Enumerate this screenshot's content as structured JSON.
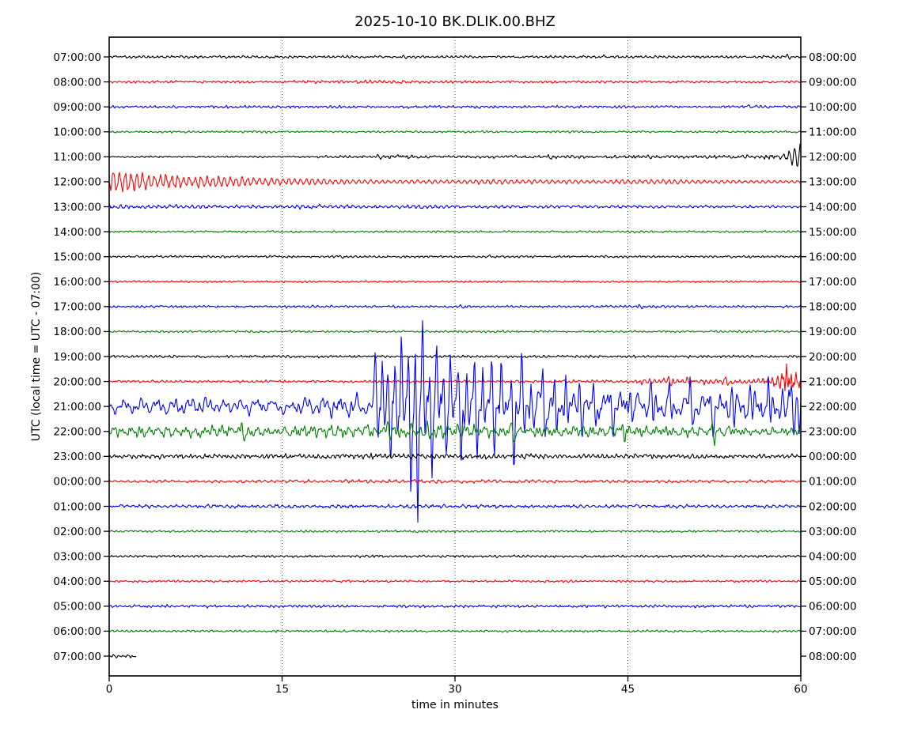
{
  "title": "2025-10-10 BK.DLIK.00.BHZ",
  "xlabel": "time in minutes",
  "ylabel": "UTC (local time = UTC - 07:00)",
  "x_ticks": [
    0,
    15,
    30,
    45,
    60
  ],
  "grid_minutes": [
    15,
    30,
    45
  ],
  "colors": {
    "black": "#000000",
    "red": "#ff0000",
    "blue": "#0000ff",
    "green": "#008000"
  },
  "chart_data": {
    "type": "line",
    "subtype": "helicorder-dayplot",
    "station": "BK.DLIK.00.BHZ",
    "date": "2025-10-10",
    "minutes_per_row": 60,
    "x_range_minutes": [
      0,
      60
    ],
    "grid": "vertical-dotted",
    "rows": [
      {
        "left": "07:00:00",
        "right": "08:00:00",
        "color": "black",
        "seg": [
          [
            0,
            60,
            1.5,
            1.5
          ]
        ],
        "spikes": [
          [
            25.5,
            2.5,
            2.5
          ],
          [
            43,
            2.5,
            2
          ],
          [
            58.8,
            2.5,
            2.5
          ]
        ]
      },
      {
        "left": "08:00:00",
        "right": "09:00:00",
        "color": "red",
        "seg": [
          [
            0,
            16,
            1.4,
            1.4
          ],
          [
            16,
            23,
            1.9,
            1.9
          ],
          [
            23,
            32,
            1.7,
            1.5
          ],
          [
            32,
            60,
            1.4,
            1.4
          ]
        ]
      },
      {
        "left": "09:00:00",
        "right": "10:00:00",
        "color": "blue",
        "seg": [
          [
            0,
            60,
            1.5,
            1.5
          ]
        ],
        "spikes": [
          [
            55.5,
            3,
            2
          ]
        ]
      },
      {
        "left": "10:00:00",
        "right": "11:00:00",
        "color": "green",
        "seg": [
          [
            0,
            60,
            1.2,
            1.2
          ]
        ]
      },
      {
        "left": "11:00:00",
        "right": "12:00:00",
        "color": "black",
        "seg": [
          [
            0,
            18,
            1.0,
            1.0
          ],
          [
            18,
            24,
            1.4,
            1.6
          ],
          [
            24,
            27,
            2.6,
            2.0
          ],
          [
            27,
            38,
            1.7,
            1.7
          ],
          [
            38,
            42,
            3.0,
            2.2
          ],
          [
            42,
            45,
            1.8,
            1.8
          ],
          [
            45,
            48,
            3.0,
            2.2
          ],
          [
            48,
            56,
            2.0,
            2.0
          ],
          [
            56,
            57.5,
            2.2,
            3.0
          ],
          [
            57.5,
            60,
            3,
            4
          ]
        ],
        "ring": {
          "start": 57.6,
          "end": 60,
          "amp": 12,
          "period": 7
        },
        "spikes": [
          [
            23.3,
            3,
            3
          ]
        ]
      },
      {
        "left": "12:00:00",
        "right": "13:00:00",
        "color": "red",
        "seg": [
          [
            0,
            1.2,
            13,
            13
          ],
          [
            1.2,
            4,
            12,
            9
          ],
          [
            4,
            8,
            9,
            7
          ],
          [
            8,
            12,
            7,
            5.5
          ],
          [
            12,
            17,
            5.5,
            4
          ],
          [
            17,
            22,
            4,
            2.8
          ],
          [
            22,
            27,
            2.8,
            2.2
          ],
          [
            27,
            32,
            2.2,
            2.4
          ],
          [
            32,
            36,
            3.4,
            3.0
          ],
          [
            36,
            40,
            3.0,
            2.4
          ],
          [
            40,
            44,
            2.2,
            2.2
          ],
          [
            44,
            48,
            3.0,
            2.6
          ],
          [
            48,
            52,
            2.6,
            2.2
          ],
          [
            52,
            60,
            2.0,
            1.7
          ]
        ],
        "f1": 0.85,
        "sw1": 0.8,
        "sw2": 0.2,
        "nw": 0.35
      },
      {
        "left": "13:00:00",
        "right": "14:00:00",
        "color": "blue",
        "seg": [
          [
            0,
            3,
            2.6,
            2.2
          ],
          [
            3,
            9,
            2.2,
            1.9
          ],
          [
            9,
            16,
            1.9,
            1.7
          ],
          [
            16,
            20,
            2.3,
            2.0
          ],
          [
            20,
            26,
            1.9,
            1.7
          ],
          [
            26,
            29,
            2.2,
            1.9
          ],
          [
            29,
            40,
            1.7,
            1.5
          ],
          [
            40,
            60,
            1.5,
            1.4
          ]
        ],
        "f1": 0.9,
        "sw1": 0.6
      },
      {
        "left": "14:00:00",
        "right": "15:00:00",
        "color": "green",
        "seg": [
          [
            0,
            60,
            1.2,
            1.2
          ]
        ]
      },
      {
        "left": "15:00:00",
        "right": "16:00:00",
        "color": "black",
        "seg": [
          [
            0,
            60,
            1.3,
            1.3
          ]
        ],
        "spikes": [
          [
            20,
            2,
            2
          ],
          [
            33,
            2,
            1.5
          ]
        ]
      },
      {
        "left": "16:00:00",
        "right": "17:00:00",
        "color": "red",
        "seg": [
          [
            0,
            60,
            1.1,
            1.1
          ]
        ]
      },
      {
        "left": "17:00:00",
        "right": "18:00:00",
        "color": "blue",
        "seg": [
          [
            0,
            60,
            1.3,
            1.3
          ]
        ],
        "spikes": [
          [
            30.5,
            2.5,
            2
          ],
          [
            46,
            2,
            2
          ]
        ]
      },
      {
        "left": "18:00:00",
        "right": "19:00:00",
        "color": "green",
        "seg": [
          [
            0,
            60,
            1.2,
            1.2
          ]
        ]
      },
      {
        "left": "19:00:00",
        "right": "20:00:00",
        "color": "black",
        "seg": [
          [
            0,
            60,
            1.5,
            1.5
          ]
        ]
      },
      {
        "left": "20:00:00",
        "right": "21:00:00",
        "color": "red",
        "seg": [
          [
            0,
            38,
            1.5,
            1.5
          ],
          [
            38,
            46,
            1.8,
            2.2
          ],
          [
            46,
            49,
            3.5,
            3.5
          ],
          [
            49,
            56,
            3.5,
            3.2
          ],
          [
            56,
            58,
            3.5,
            7
          ],
          [
            58,
            58.8,
            10,
            20
          ],
          [
            58.8,
            59.4,
            20,
            14
          ],
          [
            59.4,
            60,
            12,
            9
          ]
        ],
        "spikes": [
          [
            48.5,
            5,
            4
          ],
          [
            50.2,
            4,
            5
          ],
          [
            53.5,
            4,
            4
          ],
          [
            59.0,
            6,
            8
          ]
        ]
      },
      {
        "left": "21:00:00",
        "right": "22:00:00",
        "color": "blue",
        "seg": [
          [
            0,
            8,
            8,
            9
          ],
          [
            8,
            16,
            9,
            8
          ],
          [
            16,
            21,
            8,
            11
          ],
          [
            21,
            22.5,
            11,
            18
          ],
          [
            22.5,
            30,
            20,
            20
          ],
          [
            30,
            36,
            19,
            16
          ],
          [
            36,
            44,
            15,
            13
          ],
          [
            44,
            52,
            13,
            12
          ],
          [
            52,
            56,
            12,
            14
          ],
          [
            56,
            58.5,
            15,
            20
          ],
          [
            58.5,
            60,
            22,
            26
          ]
        ],
        "f1": 0.3,
        "f2": 0.85,
        "sw1": 0.55,
        "sw2": 0.4,
        "nw": 0.7,
        "spikes": [
          [
            23.1,
            55,
            25
          ],
          [
            23.7,
            88,
            35
          ],
          [
            24.2,
            40,
            95
          ],
          [
            24.8,
            68,
            30
          ],
          [
            25.35,
            112,
            45
          ],
          [
            25.95,
            50,
            122
          ],
          [
            26.55,
            72,
            140
          ],
          [
            27.2,
            92,
            38
          ],
          [
            27.8,
            55,
            86
          ],
          [
            28.4,
            82,
            30
          ],
          [
            29.0,
            45,
            62
          ],
          [
            29.6,
            68,
            25
          ],
          [
            30.3,
            48,
            86
          ],
          [
            31.0,
            58,
            35
          ],
          [
            31.7,
            42,
            60
          ],
          [
            32.4,
            72,
            30
          ],
          [
            33.2,
            50,
            55
          ],
          [
            34.0,
            62,
            28
          ],
          [
            34.9,
            45,
            88
          ],
          [
            35.8,
            58,
            30
          ],
          [
            36.6,
            42,
            26
          ],
          [
            37.6,
            55,
            34
          ],
          [
            38.6,
            34,
            46
          ],
          [
            39.6,
            48,
            24
          ],
          [
            40.8,
            38,
            30
          ],
          [
            42.0,
            44,
            24
          ],
          [
            43.5,
            32,
            36
          ],
          [
            45.2,
            38,
            22
          ],
          [
            47.0,
            34,
            26
          ],
          [
            48.6,
            28,
            30
          ],
          [
            50.4,
            30,
            22
          ],
          [
            52.2,
            26,
            46
          ],
          [
            54.0,
            30,
            22
          ],
          [
            55.6,
            28,
            24
          ],
          [
            57.2,
            34,
            26
          ],
          [
            58.4,
            30,
            30
          ],
          [
            59.2,
            38,
            28
          ],
          [
            59.7,
            34,
            30
          ]
        ]
      },
      {
        "left": "22:00:00",
        "right": "23:00:00",
        "color": "green",
        "seg": [
          [
            0,
            5,
            6,
            7
          ],
          [
            5,
            12,
            7,
            6
          ],
          [
            12,
            21,
            6,
            7
          ],
          [
            21,
            30,
            8,
            8
          ],
          [
            30,
            36,
            8,
            7
          ],
          [
            36,
            46,
            6.5,
            6
          ],
          [
            46,
            54,
            6,
            5.5
          ],
          [
            54,
            60,
            5.5,
            5
          ]
        ],
        "f1": 0.55,
        "f2": 1.5,
        "sw1": 0.5,
        "sw2": 0.35,
        "nw": 0.7,
        "spikes": [
          [
            11.5,
            10,
            9
          ],
          [
            24.2,
            13,
            10
          ],
          [
            27.6,
            11,
            14
          ],
          [
            34.9,
            8,
            16
          ],
          [
            44.5,
            9,
            8
          ],
          [
            52.3,
            8,
            14
          ]
        ]
      },
      {
        "left": "23:00:00",
        "right": "00:00:00",
        "color": "black",
        "seg": [
          [
            0,
            4,
            2.4,
            2.8
          ],
          [
            4,
            10,
            2.8,
            2.4
          ],
          [
            10,
            21,
            2.4,
            3.0
          ],
          [
            21,
            30,
            3.2,
            3.0
          ],
          [
            30,
            40,
            2.9,
            2.7
          ],
          [
            40,
            52,
            2.7,
            2.6
          ],
          [
            52,
            60,
            2.6,
            2.4
          ]
        ]
      },
      {
        "left": "00:00:00",
        "right": "01:00:00",
        "color": "red",
        "seg": [
          [
            0,
            20,
            1.6,
            1.7
          ],
          [
            20,
            28,
            2.1,
            2.3
          ],
          [
            28,
            36,
            2.3,
            1.9
          ],
          [
            36,
            60,
            1.8,
            1.6
          ]
        ],
        "f1": 0.8
      },
      {
        "left": "01:00:00",
        "right": "02:00:00",
        "color": "blue",
        "seg": [
          [
            0,
            10,
            1.9,
            2.1
          ],
          [
            10,
            25,
            2.1,
            2.1
          ],
          [
            25,
            35,
            2.3,
            2.1
          ],
          [
            35,
            50,
            2.1,
            1.9
          ],
          [
            50,
            60,
            1.9,
            1.9
          ]
        ],
        "f1": 0.8
      },
      {
        "left": "02:00:00",
        "right": "03:00:00",
        "color": "green",
        "seg": [
          [
            0,
            60,
            1.3,
            1.3
          ]
        ]
      },
      {
        "left": "03:00:00",
        "right": "04:00:00",
        "color": "black",
        "seg": [
          [
            0,
            60,
            1.4,
            1.4
          ]
        ]
      },
      {
        "left": "04:00:00",
        "right": "05:00:00",
        "color": "red",
        "seg": [
          [
            0,
            60,
            1.3,
            1.3
          ]
        ]
      },
      {
        "left": "05:00:00",
        "right": "06:00:00",
        "color": "blue",
        "seg": [
          [
            0,
            60,
            1.6,
            1.6
          ]
        ]
      },
      {
        "left": "06:00:00",
        "right": "07:00:00",
        "color": "green",
        "seg": [
          [
            0,
            60,
            1.3,
            1.3
          ]
        ]
      },
      {
        "left": "07:00:00",
        "right": "08:00:00",
        "color": "black",
        "seg": [
          [
            0,
            2.3,
            1.8,
            1.8
          ]
        ],
        "end": 2.3
      }
    ]
  }
}
